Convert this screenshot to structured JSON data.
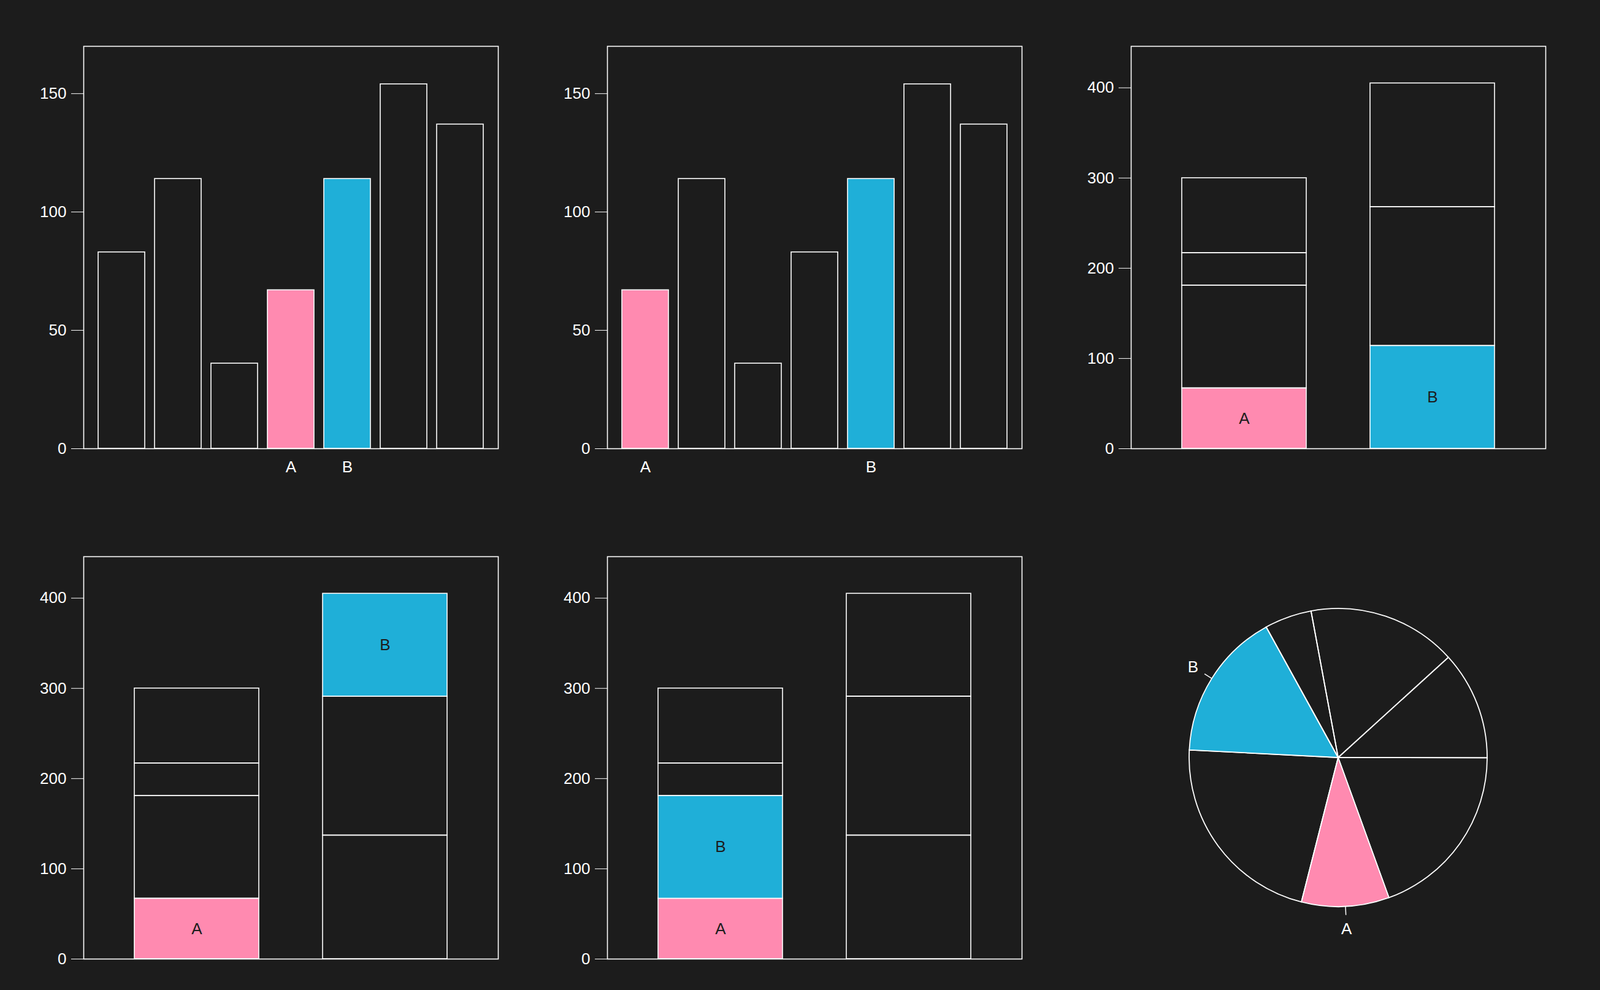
{
  "chart_data": [
    {
      "type": "bar",
      "categories": [
        null,
        null,
        null,
        "A",
        "B",
        null,
        null
      ],
      "values": [
        83,
        114,
        36,
        67,
        114,
        154,
        137
      ],
      "colors": [
        null,
        null,
        null,
        "#ff8ab0",
        "#1fafd8",
        null,
        null
      ],
      "ylim": [
        0,
        170
      ],
      "yticks": [
        0,
        50,
        100,
        150
      ]
    },
    {
      "type": "bar",
      "categories": [
        "A",
        null,
        null,
        null,
        "B",
        null,
        null
      ],
      "values": [
        67,
        114,
        36,
        83,
        114,
        154,
        137
      ],
      "colors": [
        "#ff8ab0",
        null,
        null,
        null,
        "#1fafd8",
        null,
        null
      ],
      "ylim": [
        0,
        170
      ],
      "yticks": [
        0,
        50,
        100,
        150
      ]
    },
    {
      "type": "bar",
      "stacked": true,
      "tick_labels": "y",
      "categories": [
        null,
        null
      ],
      "stacks": [
        [
          {
            "value": 67,
            "label": "A",
            "color": "#ff8ab0"
          },
          {
            "value": 114
          },
          {
            "value": 36
          },
          {
            "value": 83
          }
        ],
        [
          {
            "value": 114,
            "label": "B",
            "color": "#1fafd8"
          },
          {
            "value": 154
          },
          {
            "value": 137
          }
        ]
      ],
      "ylim": [
        0,
        446
      ],
      "yticks": [
        0,
        100,
        200,
        300,
        400
      ]
    },
    {
      "type": "bar",
      "stacked": true,
      "tick_labels": "y",
      "categories": [
        null,
        null
      ],
      "stacks": [
        [
          {
            "value": 67,
            "label": "A",
            "color": "#ff8ab0"
          },
          {
            "value": 114
          },
          {
            "value": 36
          },
          {
            "value": 83
          }
        ],
        [
          {
            "value": 137
          },
          {
            "value": 154
          },
          {
            "value": 114,
            "label": "B",
            "color": "#1fafd8"
          }
        ]
      ],
      "ylim": [
        0,
        446
      ],
      "yticks": [
        0,
        100,
        200,
        300,
        400
      ]
    },
    {
      "type": "bar",
      "stacked": true,
      "tick_labels": "y",
      "categories": [
        null,
        null
      ],
      "stacks": [
        [
          {
            "value": 67,
            "label": "A",
            "color": "#ff8ab0"
          },
          {
            "value": 114,
            "label": "B",
            "color": "#1fafd8"
          },
          {
            "value": 36
          },
          {
            "value": 83
          }
        ],
        [
          {
            "value": 137
          },
          {
            "value": 154
          },
          {
            "value": 114
          }
        ]
      ],
      "ylim": [
        0,
        446
      ],
      "yticks": [
        0,
        100,
        200,
        300,
        400
      ]
    },
    {
      "type": "pie",
      "values": [
        114,
        83,
        137,
        67,
        154,
        114,
        36
      ],
      "labels": [
        null,
        null,
        null,
        "A",
        null,
        "B",
        null
      ],
      "colors": [
        null,
        null,
        null,
        "#ff8ab0",
        null,
        "#1fafd8",
        null
      ]
    }
  ]
}
